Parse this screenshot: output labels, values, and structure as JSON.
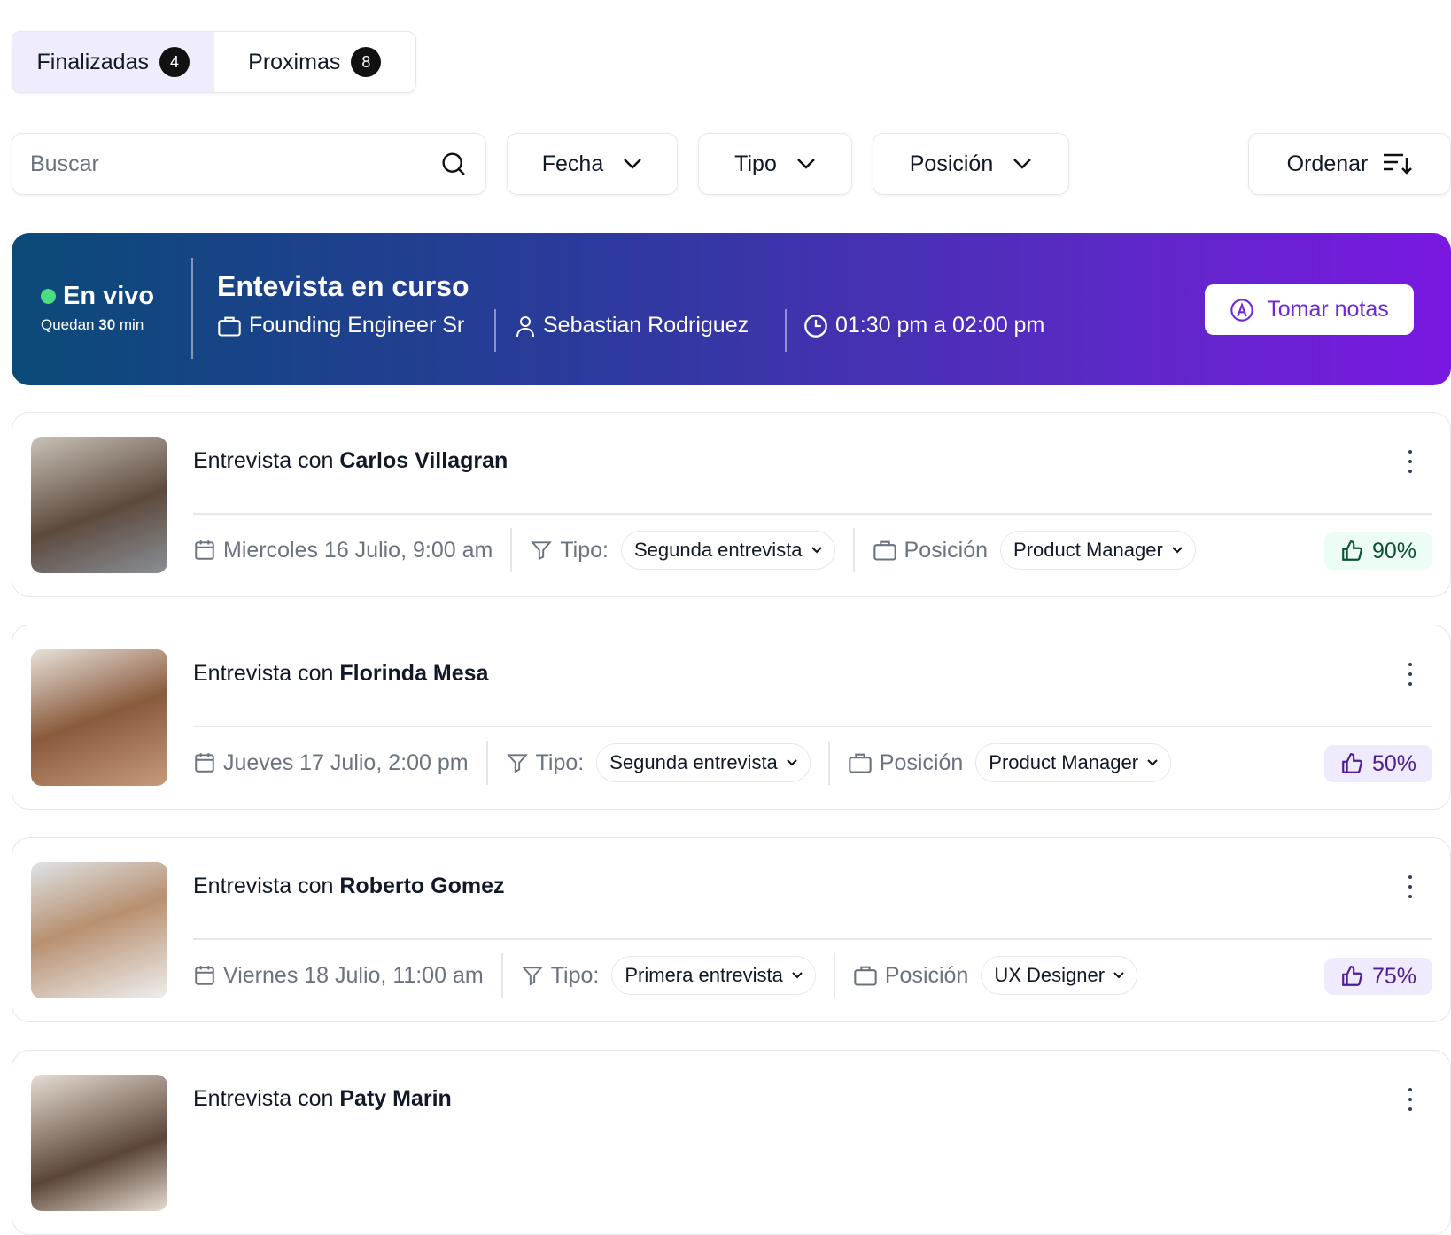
{
  "tabs": [
    {
      "label": "Finalizadas",
      "count": "4",
      "active": true
    },
    {
      "label": "Proximas",
      "count": "8",
      "active": false
    }
  ],
  "filters": {
    "search_placeholder": "Buscar",
    "fecha": "Fecha",
    "tipo": "Tipo",
    "posicion": "Posición",
    "ordenar": "Ordenar"
  },
  "live": {
    "status": "En vivo",
    "remaining_prefix": "Quedan",
    "remaining_value": "30",
    "remaining_unit": "min",
    "title": "Entevista en curso",
    "position": "Founding Engineer Sr",
    "person": "Sebastian Rodriguez",
    "time": "01:30 pm a 02:00 pm",
    "notes_button": "Tomar notas",
    "gradient": [
      "#0b4a78",
      "#7a18e2"
    ]
  },
  "interviews": [
    {
      "prefix": "Entrevista con",
      "name": "Carlos Villagran",
      "date": "Miercoles 16 Julio, 9:00 am",
      "tipo_label": "Tipo:",
      "tipo": "Segunda entrevista",
      "pos_label": "Posición",
      "position": "Product Manager",
      "score": "90%",
      "score_color": "#0f5132",
      "score_bg": "#ecfdf5"
    },
    {
      "prefix": "Entrevista con",
      "name": "Florinda Mesa",
      "date": "Jueves 17 Julio, 2:00 pm",
      "tipo_label": "Tipo:",
      "tipo": "Segunda entrevista",
      "pos_label": "Posición",
      "position": "Product Manager",
      "score": "50%",
      "score_color": "#4c1d95",
      "score_bg": "#efeafd"
    },
    {
      "prefix": "Entrevista con",
      "name": "Roberto Gomez",
      "date": "Viernes 18 Julio, 11:00 am",
      "tipo_label": "Tipo:",
      "tipo": "Primera entrevista",
      "pos_label": "Posición",
      "position": "UX Designer",
      "score": "75%",
      "score_color": "#4c1d95",
      "score_bg": "#efeafd"
    },
    {
      "prefix": "Entrevista con",
      "name": "Paty Marin"
    }
  ]
}
